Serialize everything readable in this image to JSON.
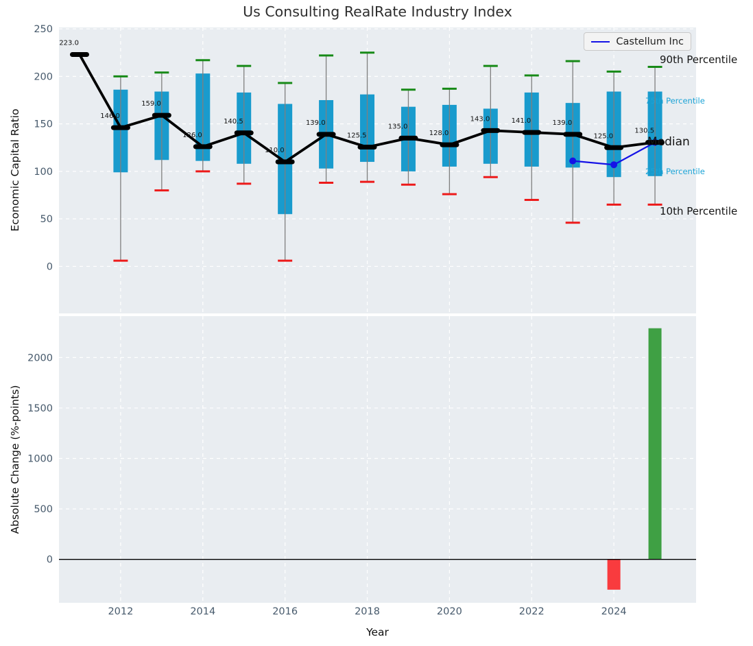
{
  "figure_title": "Us Consulting RealRate Industry Index",
  "colors": {
    "plot_bg": "#e9edf1",
    "grid": "#ffffff",
    "box": "#199bcd",
    "whisker": "#7f7f7f",
    "cap_high": "#178a17",
    "cap_low": "#ed1a1a",
    "median": "#000000",
    "company_line": "#1512e6",
    "tick_label": "#46596b",
    "median_value_label": "#111111",
    "bar_negative": "#f93b3e",
    "bar_positive": "#3fa044",
    "zero_line": "#000000"
  },
  "annotations": {
    "p90": "90th Percentile",
    "p75": "75th Percentile",
    "median": "Median",
    "p25": "25th Percentile",
    "p10": "10th Percentile"
  },
  "chart_data": [
    {
      "type": "boxplot+line",
      "title": "Us Consulting RealRate Industry Index",
      "ylabel": "Economic Capital Ratio",
      "ylim": [
        -49.5,
        251.5
      ],
      "yticks": [
        0,
        50,
        100,
        150,
        200,
        250
      ],
      "xlim": [
        2010.5,
        2026
      ],
      "xticks": [
        2012,
        2014,
        2016,
        2018,
        2020,
        2022,
        2024
      ],
      "grid": true,
      "legend_position": "upper right",
      "years": [
        2011,
        2012,
        2013,
        2014,
        2015,
        2016,
        2017,
        2018,
        2019,
        2020,
        2021,
        2022,
        2023,
        2024,
        2025
      ],
      "percentiles": {
        "p10": [
          223,
          6,
          80,
          100,
          87,
          6,
          88,
          89,
          86,
          76,
          94,
          70,
          46,
          65,
          65
        ],
        "p25": [
          223,
          99,
          112,
          111,
          108,
          55,
          103,
          110,
          100,
          105,
          108,
          105,
          104,
          94,
          95
        ],
        "median": [
          223,
          146,
          159,
          126,
          140.5,
          110,
          139,
          125.5,
          135,
          128,
          143,
          141,
          139,
          125,
          130.5
        ],
        "p75": [
          223,
          186,
          184,
          203,
          183,
          171,
          175,
          181,
          168,
          170,
          166,
          183,
          172,
          184,
          184
        ],
        "p90": [
          223,
          200,
          204,
          217,
          211,
          193,
          222,
          225,
          186,
          187,
          211,
          201,
          216,
          205,
          210
        ]
      },
      "median_labels": [
        "223.0",
        "146.0",
        "159.0",
        "126.0",
        "140.5",
        "110.0",
        "139.0",
        "125.5",
        "135.0",
        "128.0",
        "143.0",
        "141.0",
        "139.0",
        "125.0",
        "130.5"
      ],
      "company_line": {
        "name": "Castellum Inc",
        "x": [
          2023,
          2024,
          2025
        ],
        "y": [
          111,
          107,
          130.5
        ]
      }
    },
    {
      "type": "bar",
      "ylabel": "Absolute Change (%-points)",
      "xlabel": "Year",
      "ylim": [
        -430,
        2410
      ],
      "yticks": [
        0,
        500,
        1000,
        1500,
        2000
      ],
      "xlim": [
        2010.5,
        2026
      ],
      "xticks": [
        2012,
        2014,
        2016,
        2018,
        2020,
        2022,
        2024
      ],
      "grid": true,
      "bars": [
        {
          "x": 2024,
          "value": -300,
          "color": "#f93b3e"
        },
        {
          "x": 2025,
          "value": 2290,
          "color": "#3fa044"
        }
      ]
    }
  ]
}
